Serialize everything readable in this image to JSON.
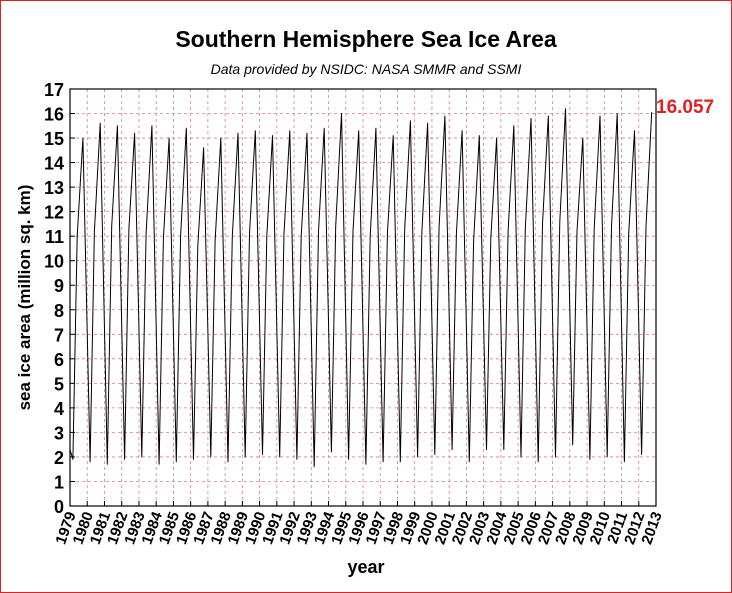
{
  "chart_data": {
    "type": "line",
    "title": "Southern Hemisphere Sea Ice Area",
    "subtitle": "Data provided by NSIDC: NASA SMMR and SSMI",
    "xlabel": "year",
    "ylabel": "sea ice area (million sq. km)",
    "xlim": [
      1979,
      2013
    ],
    "ylim": [
      0,
      17
    ],
    "x_ticks": [
      "1979",
      "1980",
      "1981",
      "1982",
      "1983",
      "1984",
      "1985",
      "1986",
      "1987",
      "1988",
      "1989",
      "1990",
      "1991",
      "1992",
      "1993",
      "1994",
      "1995",
      "1996",
      "1997",
      "1998",
      "1999",
      "2000",
      "2001",
      "2002",
      "2003",
      "2004",
      "2005",
      "2006",
      "2007",
      "2008",
      "2009",
      "2010",
      "2011",
      "2012",
      "2013"
    ],
    "y_ticks": [
      "0",
      "1",
      "2",
      "3",
      "4",
      "5",
      "6",
      "7",
      "8",
      "9",
      "10",
      "11",
      "12",
      "13",
      "14",
      "15",
      "16",
      "17"
    ],
    "grid": true,
    "latest_value_label": "16.057",
    "latest_value_color": "#e02020",
    "line_color": "#000000",
    "grid_color": "#d98080",
    "series": [
      {
        "x": [
          1979.0,
          1979.167,
          1979.417,
          1979.75,
          1980.167,
          1980.417,
          1980.75,
          1981.167,
          1981.417,
          1981.75,
          1982.167,
          1982.417,
          1982.75,
          1983.167,
          1983.417,
          1983.75,
          1984.167,
          1984.417,
          1984.75,
          1985.167,
          1985.417,
          1985.75,
          1986.167,
          1986.417,
          1986.75,
          1987.167,
          1987.417,
          1987.75,
          1988.167,
          1988.417,
          1988.75,
          1989.167,
          1989.417,
          1989.75,
          1990.167,
          1990.417,
          1990.75,
          1991.167,
          1991.417,
          1991.75,
          1992.167,
          1992.417,
          1992.75,
          1993.167,
          1993.417,
          1993.75,
          1994.167,
          1994.417,
          1994.75,
          1995.167,
          1995.417,
          1995.75,
          1996.167,
          1996.417,
          1996.75,
          1997.167,
          1997.417,
          1997.75,
          1998.167,
          1998.417,
          1998.75,
          1999.167,
          1999.417,
          1999.75,
          2000.167,
          2000.417,
          2000.75,
          2001.167,
          2001.417,
          2001.75,
          2002.167,
          2002.417,
          2002.75,
          2003.167,
          2003.417,
          2003.75,
          2004.167,
          2004.417,
          2004.75,
          2005.167,
          2005.417,
          2005.75,
          2006.167,
          2006.417,
          2006.75,
          2007.167,
          2007.417,
          2007.75,
          2008.167,
          2008.417,
          2008.75,
          2009.167,
          2009.417,
          2009.75,
          2010.167,
          2010.417,
          2010.75,
          2011.167,
          2011.417,
          2011.75,
          2012.167,
          2012.417,
          2012.75
        ],
        "y": [
          2.3,
          1.9,
          11.0,
          15.0,
          1.8,
          11.2,
          15.6,
          1.7,
          11.4,
          15.5,
          1.9,
          11.3,
          15.2,
          2.0,
          11.1,
          15.5,
          1.7,
          10.9,
          15.0,
          1.8,
          11.0,
          15.4,
          1.9,
          10.6,
          14.6,
          2.0,
          10.8,
          15.0,
          1.8,
          11.0,
          15.2,
          2.0,
          11.1,
          15.3,
          2.1,
          11.0,
          15.1,
          2.0,
          11.1,
          15.3,
          1.9,
          11.0,
          15.2,
          1.6,
          11.2,
          15.4,
          2.2,
          11.4,
          16.0,
          1.9,
          11.2,
          15.3,
          1.7,
          11.0,
          15.4,
          1.8,
          11.1,
          15.1,
          1.8,
          11.3,
          15.7,
          2.0,
          11.2,
          15.6,
          2.1,
          11.4,
          15.9,
          2.3,
          11.1,
          15.3,
          1.8,
          10.8,
          15.1,
          2.3,
          10.9,
          15.0,
          2.3,
          11.2,
          15.5,
          2.0,
          11.3,
          15.8,
          1.8,
          11.5,
          15.9,
          2.0,
          11.6,
          16.2,
          2.5,
          11.2,
          15.0,
          1.9,
          11.3,
          15.9,
          2.0,
          11.4,
          16.0,
          1.8,
          11.1,
          15.3,
          2.1,
          11.4,
          16.06
        ]
      }
    ]
  }
}
